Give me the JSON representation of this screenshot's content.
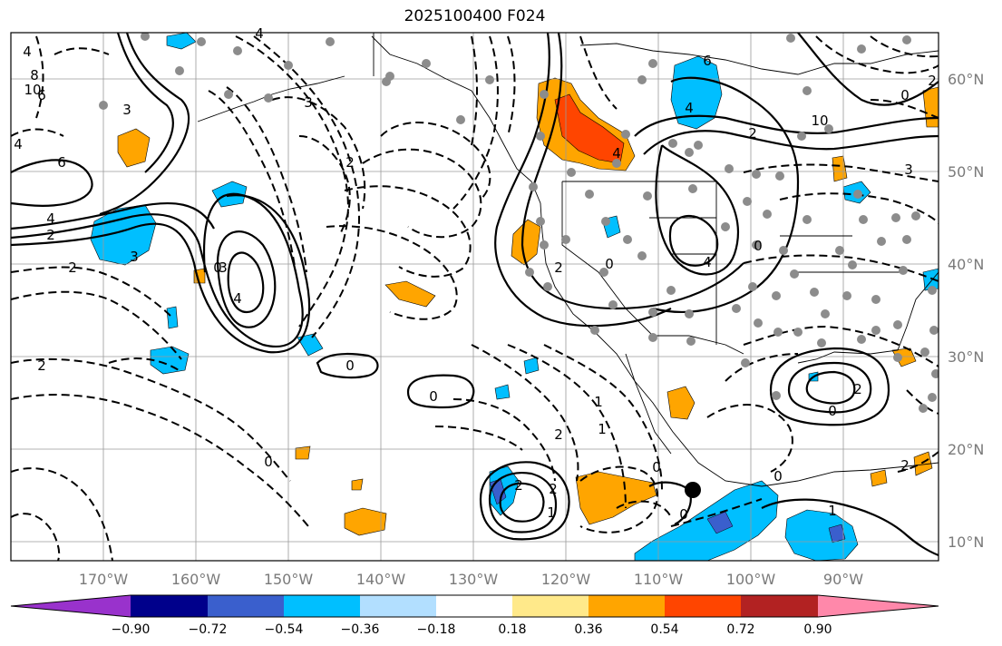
{
  "title": "2025100400 F024",
  "lon_labels": [
    "170°W",
    "160°W",
    "150°W",
    "140°W",
    "130°W",
    "120°W",
    "110°W",
    "100°W",
    "90°W"
  ],
  "lat_labels": [
    "60°N",
    "50°N",
    "40°N",
    "30°N",
    "20°N",
    "10°N"
  ],
  "colorbar": {
    "colors": [
      "#9932cc",
      "#00008b",
      "#3a5fcd",
      "#00bfff",
      "#b2dfff",
      "#ffffff",
      "#ffe98a",
      "#ffa500",
      "#ff4500",
      "#b22222",
      "#ff88aa"
    ],
    "ticks": [
      "−0.90",
      "−0.72",
      "−0.54",
      "−0.36",
      "−0.18",
      "0.18",
      "0.36",
      "0.54",
      "0.72",
      "0.90"
    ]
  },
  "contour_labels": [
    "4",
    "8",
    "10",
    "6",
    "3",
    "4",
    "6",
    "4",
    "2",
    "2",
    "3",
    "3",
    "4",
    "2",
    "0",
    "0",
    "0",
    "1",
    "2",
    "2",
    "4",
    "0",
    "2",
    "2",
    "4",
    "1",
    "2",
    "0",
    "0",
    "2",
    "1",
    "0",
    "0",
    "0",
    "4",
    "3",
    "2",
    "10",
    "6",
    "0",
    "2",
    "1",
    "2",
    "3",
    "4",
    "0"
  ]
}
